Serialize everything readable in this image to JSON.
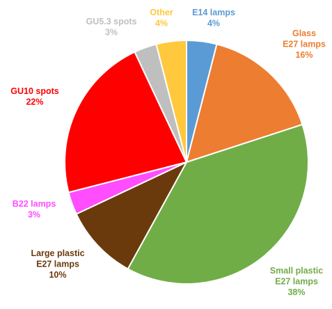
{
  "chart_data": {
    "type": "pie",
    "title": "",
    "slices": [
      {
        "name": "E14 lamps",
        "value": 4,
        "label_lines": [
          "E14 lamps",
          "4%"
        ],
        "color": "#5B9BD5"
      },
      {
        "name": "Glass E27 lamps",
        "value": 16,
        "label_lines": [
          "Glass",
          "E27 lamps",
          "16%"
        ],
        "color": "#ED7D31"
      },
      {
        "name": "Small plastic E27 lamps",
        "value": 38,
        "label_lines": [
          "Small plastic",
          "E27 lamps",
          "38%"
        ],
        "color": "#70AD47"
      },
      {
        "name": "Large plastic E27 lamps",
        "value": 10,
        "label_lines": [
          "Large plastic",
          "E27 lamps",
          "10%"
        ],
        "color": "#6B3A0C"
      },
      {
        "name": "B22 lamps",
        "value": 3,
        "label_lines": [
          "B22 lamps",
          "3%"
        ],
        "color": "#FF4DFF"
      },
      {
        "name": "GU10 spots",
        "value": 22,
        "label_lines": [
          "GU10 spots",
          "22%"
        ],
        "color": "#FF0000"
      },
      {
        "name": "GU5.3 spots",
        "value": 3,
        "label_lines": [
          "GU5.3 spots",
          "3%"
        ],
        "color": "#BFBFBF"
      },
      {
        "name": "Other",
        "value": 4,
        "label_lines": [
          "Other",
          "4%"
        ],
        "color": "#FFC83D"
      }
    ],
    "start_angle_deg": 0,
    "direction": "clockwise",
    "legend": "none",
    "data_labels": "outside"
  }
}
